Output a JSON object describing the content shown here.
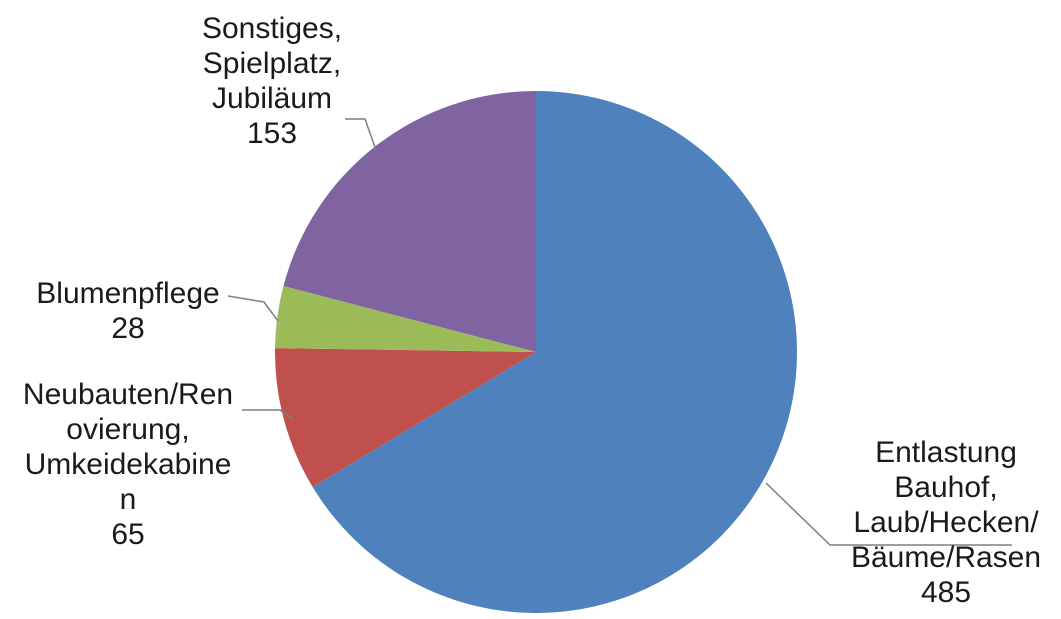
{
  "chart_data": {
    "type": "pie",
    "title": "",
    "start_angle_deg": 0,
    "direction": "clockwise",
    "slices": [
      {
        "name": "Entlastung Bauhof, Laub/Hecken/ Bäume/Rasen",
        "value": 485,
        "value_label": "485",
        "label_lines": [
          "Entlastung",
          "Bauhof,",
          "Laub/Hecken/",
          "Bäume/Rasen"
        ],
        "color": "#4f81bd"
      },
      {
        "name": "Neubauten/Ren ovierung, Umkeidekabine n",
        "value": 65,
        "value_label": "65",
        "label_lines": [
          "Neubauten/Ren",
          "ovierung,",
          "Umkeidekabine",
          "n"
        ],
        "color": "#c0504d"
      },
      {
        "name": "Blumenpflege",
        "value": 28,
        "value_label": "28",
        "label_lines": [
          "Blumenpflege"
        ],
        "color": "#9bbb59"
      },
      {
        "name": "Sonstiges, Spielplatz, Jubiläum",
        "value": 153,
        "value_label": "153",
        "label_lines": [
          "Sonstiges,",
          "Spielplatz,",
          "Jubiläum"
        ],
        "color": "#8064a2"
      }
    ]
  }
}
